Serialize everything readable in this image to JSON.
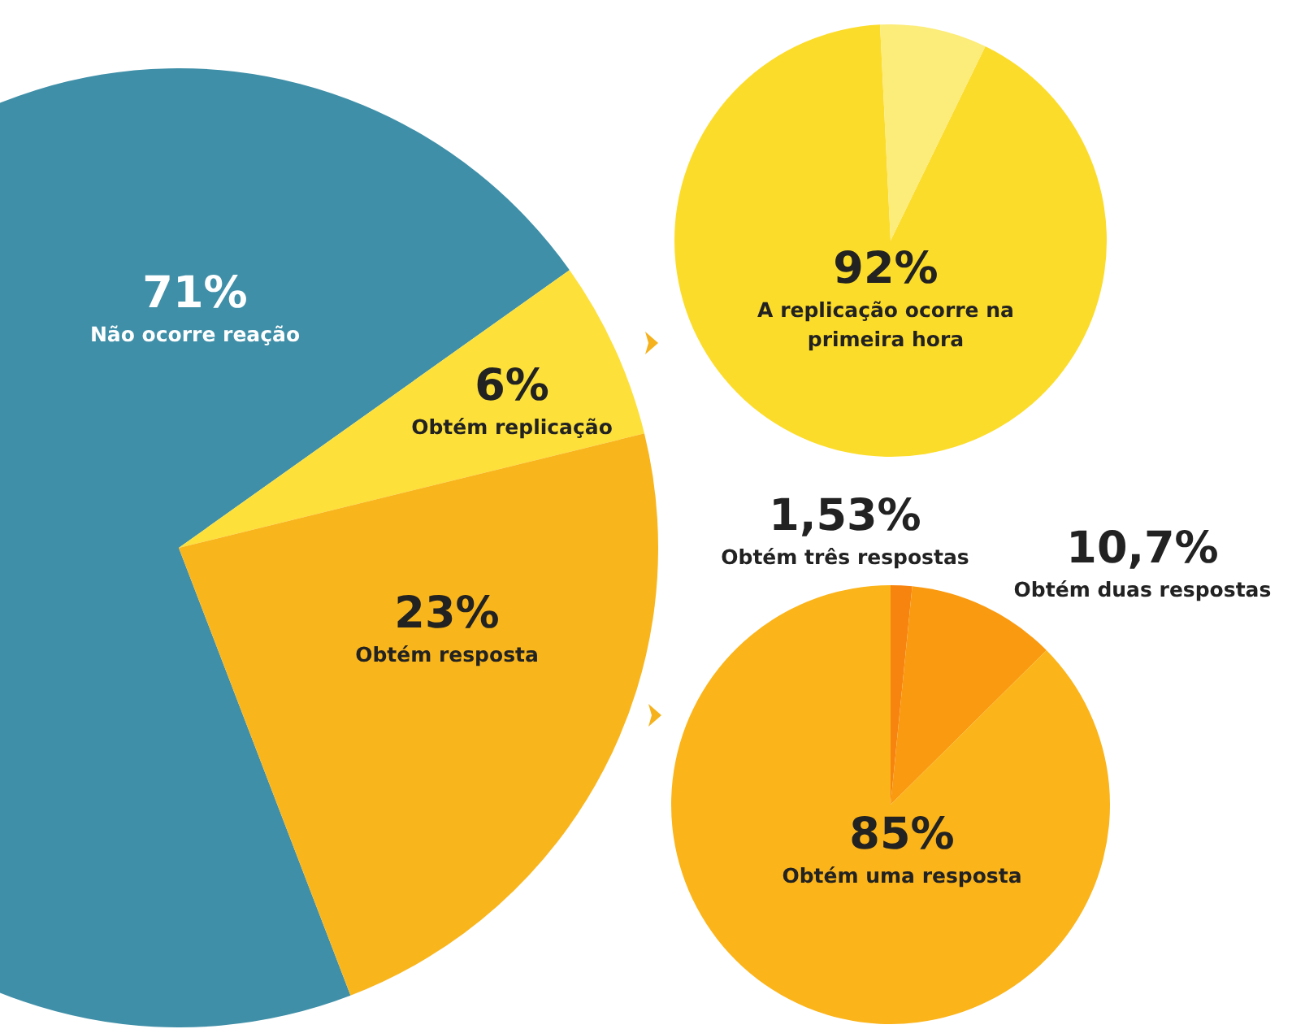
{
  "chart_data": [
    {
      "type": "pie",
      "categories": [
        "Não ocorre reação",
        "Obtém replicação",
        "Obtém resposta"
      ],
      "values": [
        71,
        6,
        23
      ],
      "colors": [
        "#3f8fa8",
        "#fde03a",
        "#f9b51c"
      ],
      "value_labels": [
        "71%",
        "6%",
        "23%"
      ]
    },
    {
      "type": "pie",
      "categories": [
        "A replicação ocorre na primeira hora",
        null
      ],
      "values": [
        92,
        8
      ],
      "colors": [
        "#fcdc2a",
        "#fcec7a"
      ],
      "value_labels": [
        "92%",
        null
      ]
    },
    {
      "type": "pie",
      "categories": [
        "Obtém três respostas",
        "Obtém duas respostas",
        "Obtém uma resposta"
      ],
      "values": [
        1.53,
        10.7,
        85
      ],
      "colors": [
        "#f7840f",
        "#fa9a10",
        "#fbb41a"
      ],
      "value_labels": [
        "1,53%",
        "10,7%",
        "85%"
      ]
    }
  ]
}
